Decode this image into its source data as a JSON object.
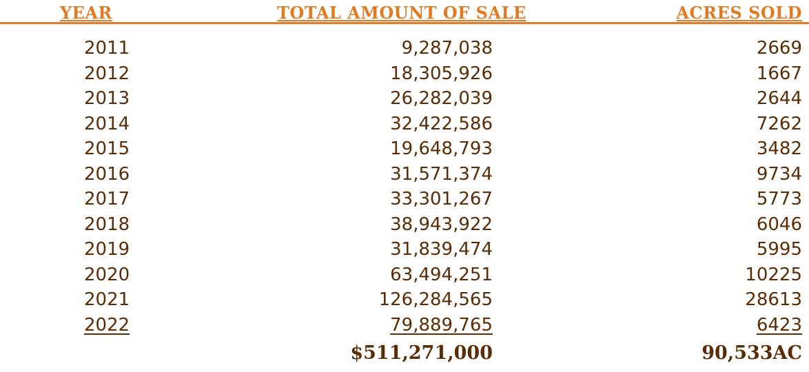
{
  "header": {
    "year": "YEAR",
    "total_amount_of_sale": "TOTAL AMOUNT OF SALE",
    "acres_sold": "ACRES SOLD"
  },
  "rows": [
    {
      "year": "2011",
      "sale": "9,287,038",
      "acres": "2669"
    },
    {
      "year": "2012",
      "sale": "18,305,926",
      "acres": "1667"
    },
    {
      "year": "2013",
      "sale": "26,282,039",
      "acres": "2644"
    },
    {
      "year": "2014",
      "sale": "32,422,586",
      "acres": "7262"
    },
    {
      "year": "2015",
      "sale": "19,648,793",
      "acres": "3482"
    },
    {
      "year": "2016",
      "sale": "31,571,374",
      "acres": "9734"
    },
    {
      "year": "2017",
      "sale": "33,301,267",
      "acres": "5773"
    },
    {
      "year": "2018",
      "sale": "38,943,922",
      "acres": "6046"
    },
    {
      "year": "2019",
      "sale": "31,839,474",
      "acres": "5995"
    },
    {
      "year": "2020",
      "sale": "63,494,251",
      "acres": "10225"
    },
    {
      "year": "2021",
      "sale": "126,284,565",
      "acres": "28613"
    },
    {
      "year": "2022",
      "sale": "79,889,765",
      "acres": "6423"
    }
  ],
  "totals": {
    "sale": "$511,271,000",
    "acres": "90,533AC"
  },
  "colors": {
    "header_accent": "#e07b24",
    "body_text": "#5a2d06"
  }
}
